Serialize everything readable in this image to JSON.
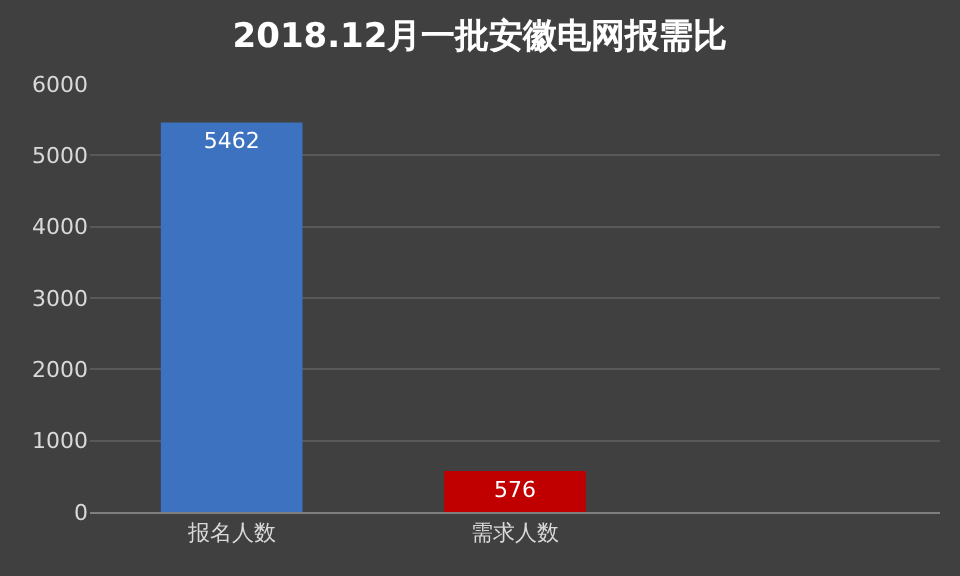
{
  "chart_data": {
    "type": "bar",
    "title": "2018.12月一批安徽电网报需比",
    "categories": [
      "报名人数",
      "需求人数",
      null
    ],
    "values": [
      5462,
      576,
      null
    ],
    "colors": [
      "#3d72c0",
      "#c00000",
      "#3d72c0"
    ],
    "ylim": [
      0,
      6000
    ],
    "yticks": [
      0,
      1000,
      2000,
      3000,
      4000,
      5000,
      6000
    ],
    "grid": "y",
    "data_labels": true,
    "legend": false
  }
}
